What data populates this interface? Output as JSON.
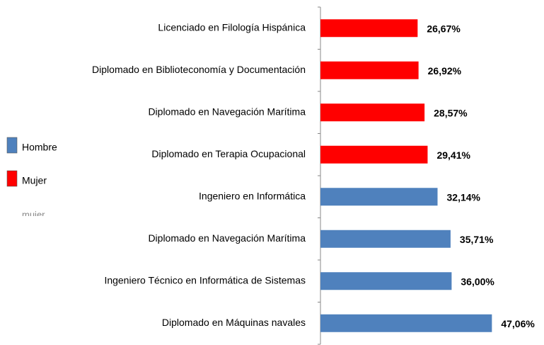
{
  "chart_data": {
    "type": "barh",
    "categories": [
      "Licenciado en Filología Hispánica",
      "Diplomado en Biblioteconomía y Documentación",
      "Diplomado en Navegación Marítima",
      "Diplomado en Terapia Ocupacional",
      "Ingeniero en Informática",
      "Diplomado en Navegación Marítima",
      "Ingeniero Técnico en Informática de Sistemas",
      "Diplomado en Máquinas navales"
    ],
    "values": [
      26.67,
      26.92,
      28.57,
      29.41,
      32.14,
      35.71,
      36.0,
      47.06
    ],
    "value_labels": [
      "26,67%",
      "26,92%",
      "28,57%",
      "29,41%",
      "32,14%",
      "35,71%",
      "36,00%",
      "47,06%"
    ],
    "colors": [
      "#ff0000",
      "#ff0000",
      "#ff0000",
      "#ff0000",
      "#4f81bd",
      "#4f81bd",
      "#4f81bd",
      "#4f81bd"
    ],
    "xlim": [
      0,
      60
    ],
    "legend": [
      {
        "name": "Hombre",
        "color": "#4f81bd"
      },
      {
        "name": "Mujer",
        "color": "#ff0000"
      }
    ],
    "annotations": [
      "mujer"
    ]
  }
}
